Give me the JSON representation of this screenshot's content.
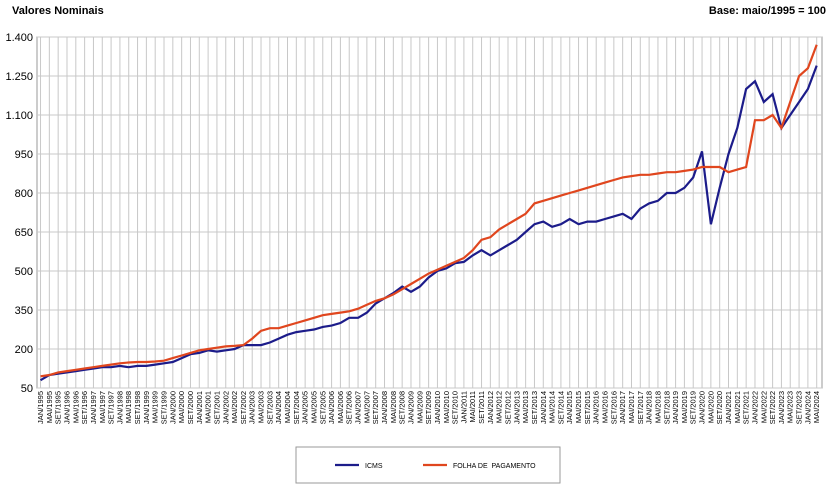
{
  "chart_data": {
    "type": "line",
    "title": "Valores Nominais",
    "subtitle": "Base: maio/1995 = 100",
    "categories": [
      "JAN/1995",
      "MAI/1995",
      "SET/1995",
      "JAN/1996",
      "MAI/1996",
      "SET/1996",
      "JAN/1997",
      "MAI/1997",
      "SET/1997",
      "JAN/1998",
      "MAI/1998",
      "SET/1998",
      "JAN/1999",
      "MAI/1999",
      "SET/1999",
      "JAN/2000",
      "MAI/2000",
      "SET/2000",
      "JAN/2001",
      "MAI/2001",
      "SET/2001",
      "JAN/2002",
      "MAI/2002",
      "SET/2002",
      "JAN/2003",
      "MAI/2003",
      "SET/2003",
      "JAN/2004",
      "MAI/2004",
      "SET/2004",
      "JAN/2005",
      "MAI/2005",
      "SET/2005",
      "JAN/2006",
      "MAI/2006",
      "SET/2006",
      "JAN/2007",
      "MAI/2007",
      "SET/2007",
      "JAN/2008",
      "MAI/2008",
      "SET/2008",
      "JAN/2009",
      "MAI/2009",
      "SET/2009",
      "JAN/2010",
      "MAI/2010",
      "SET/2010",
      "JAN/2011",
      "MAI/2011",
      "SET/2011",
      "JAN/2012",
      "MAI/2012",
      "SET/2012",
      "JAN/2013",
      "MAI/2013",
      "SET/2013",
      "JAN/2014",
      "MAI/2014",
      "SET/2014",
      "JAN/2015",
      "MAI/2015",
      "SET/2015",
      "JAN/2016",
      "MAI/2016",
      "SET/2016",
      "JAN/2017",
      "MAI/2017",
      "SET/2017",
      "JAN/2018",
      "MAI/2018",
      "SET/2018",
      "JAN/2019",
      "MAI/2019",
      "SET/2019",
      "JAN/2020",
      "MAI/2020",
      "SET/2020",
      "JAN/2021",
      "MAI/2021",
      "SET/2021",
      "JAN/2022",
      "MAI/2022",
      "SET/2022",
      "JAN/2023",
      "MAI/2023",
      "SET/2023",
      "JAN/2024",
      "MAI/2024"
    ],
    "series": [
      {
        "name": "ICMS",
        "color": "#1c1c8a",
        "values": [
          80,
          100,
          105,
          110,
          115,
          120,
          125,
          130,
          130,
          135,
          130,
          135,
          135,
          140,
          145,
          150,
          165,
          180,
          185,
          195,
          190,
          195,
          200,
          215,
          215,
          215,
          225,
          240,
          255,
          265,
          270,
          275,
          285,
          290,
          300,
          320,
          320,
          340,
          375,
          395,
          415,
          440,
          420,
          440,
          475,
          500,
          510,
          530,
          535,
          560,
          580,
          560,
          580,
          600,
          620,
          650,
          680,
          690,
          670,
          680,
          700,
          680,
          690,
          690,
          700,
          710,
          720,
          700,
          740,
          760,
          770,
          800,
          800,
          820,
          860,
          960,
          680,
          820,
          950,
          1050,
          1200,
          1230,
          1150,
          1180,
          1050,
          1100,
          1150,
          1200,
          1290
        ]
      },
      {
        "name": "FOLHA DE  PAGAMENTO",
        "color": "#e0461e",
        "values": [
          95,
          100,
          110,
          115,
          120,
          125,
          130,
          135,
          140,
          145,
          148,
          150,
          150,
          152,
          155,
          165,
          175,
          185,
          195,
          200,
          205,
          210,
          212,
          215,
          240,
          270,
          280,
          280,
          290,
          300,
          310,
          320,
          330,
          335,
          340,
          345,
          355,
          370,
          385,
          395,
          410,
          430,
          450,
          470,
          490,
          505,
          520,
          535,
          550,
          580,
          620,
          630,
          660,
          680,
          700,
          720,
          760,
          770,
          780,
          790,
          800,
          810,
          820,
          830,
          840,
          850,
          860,
          865,
          870,
          870,
          875,
          880,
          880,
          885,
          890,
          900,
          900,
          900,
          880,
          890,
          900,
          1080,
          1080,
          1100,
          1050,
          1150,
          1250,
          1280,
          1370
        ]
      }
    ],
    "ylim": [
      50,
      1400
    ],
    "yticks": [
      50,
      200,
      350,
      500,
      650,
      800,
      950,
      {
        "value": 1100,
        "label": "1.100"
      },
      {
        "value": 1250,
        "label": "1.250"
      },
      {
        "value": 1400,
        "label": "1.400"
      }
    ],
    "grid": true
  }
}
